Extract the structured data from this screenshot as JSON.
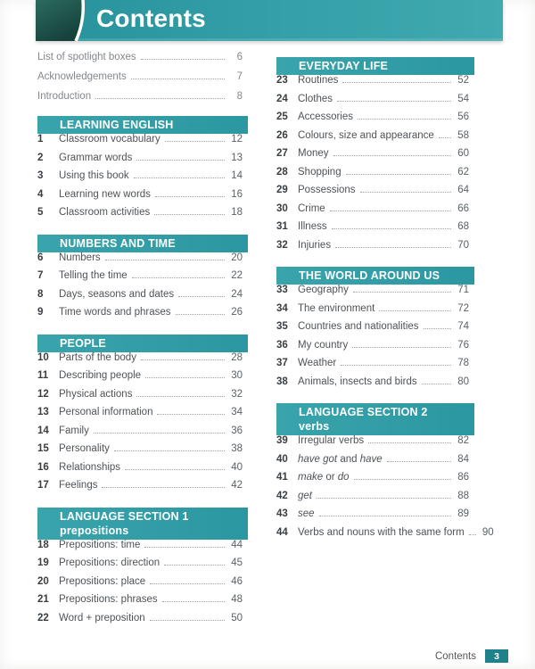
{
  "header": {
    "title": "Contents"
  },
  "footer": {
    "label": "Contents",
    "page_number": "3"
  },
  "colors": {
    "accent_teal": "#2f9da6",
    "header_teal_left": "#27929b",
    "header_teal_right": "#41a9b0",
    "dark_green_top": "#2c6b5e",
    "dark_green_bottom": "#15413a",
    "badge_teal": "#1f828b"
  },
  "front_matter": [
    {
      "title": "List of spotlight boxes",
      "page": "6"
    },
    {
      "title": "Acknowledgements",
      "page": "7"
    },
    {
      "title": "Introduction",
      "page": "8"
    }
  ],
  "columns": {
    "left": [
      {
        "heading": "LEARNING ENGLISH",
        "items": [
          {
            "num": "1",
            "title": "Classroom vocabulary",
            "page": "12"
          },
          {
            "num": "2",
            "title": "Grammar words",
            "page": "13"
          },
          {
            "num": "3",
            "title": "Using this book",
            "page": "14"
          },
          {
            "num": "4",
            "title": "Learning new words",
            "page": "16"
          },
          {
            "num": "5",
            "title": "Classroom activities",
            "page": "18"
          }
        ]
      },
      {
        "heading": "NUMBERS AND TIME",
        "items": [
          {
            "num": "6",
            "title": "Numbers",
            "page": "20"
          },
          {
            "num": "7",
            "title": "Telling the time",
            "page": "22"
          },
          {
            "num": "8",
            "title": "Days, seasons and dates",
            "page": "24"
          },
          {
            "num": "9",
            "title": "Time words and phrases",
            "page": "26"
          }
        ]
      },
      {
        "heading": "PEOPLE",
        "items": [
          {
            "num": "10",
            "title": "Parts of the body",
            "page": "28"
          },
          {
            "num": "11",
            "title": "Describing people",
            "page": "30"
          },
          {
            "num": "12",
            "title": "Physical actions",
            "page": "32"
          },
          {
            "num": "13",
            "title": "Personal information",
            "page": "34"
          },
          {
            "num": "14",
            "title": "Family",
            "page": "36"
          },
          {
            "num": "15",
            "title": "Personality",
            "page": "38"
          },
          {
            "num": "16",
            "title": "Relationships",
            "page": "40"
          },
          {
            "num": "17",
            "title": "Feelings",
            "page": "42"
          }
        ]
      },
      {
        "heading": "LANGUAGE SECTION 1",
        "subheading": "prepositions",
        "items": [
          {
            "num": "18",
            "title": "Prepositions: time",
            "page": "44"
          },
          {
            "num": "19",
            "title": "Prepositions: direction",
            "page": "45"
          },
          {
            "num": "20",
            "title": "Prepositions: place",
            "page": "46"
          },
          {
            "num": "21",
            "title": "Prepositions: phrases",
            "page": "48"
          },
          {
            "num": "22",
            "title": "Word + preposition",
            "page": "50"
          }
        ]
      }
    ],
    "right": [
      {
        "heading": "EVERYDAY LIFE",
        "items": [
          {
            "num": "23",
            "title": "Routines",
            "page": "52"
          },
          {
            "num": "24",
            "title": "Clothes",
            "page": "54"
          },
          {
            "num": "25",
            "title": "Accessories",
            "page": "56"
          },
          {
            "num": "26",
            "title": "Colours, size and appearance",
            "page": "58"
          },
          {
            "num": "27",
            "title": "Money",
            "page": "60"
          },
          {
            "num": "28",
            "title": "Shopping",
            "page": "62"
          },
          {
            "num": "29",
            "title": "Possessions",
            "page": "64"
          },
          {
            "num": "30",
            "title": "Crime",
            "page": "66"
          },
          {
            "num": "31",
            "title": "Illness",
            "page": "68"
          },
          {
            "num": "32",
            "title": "Injuries",
            "page": "70"
          }
        ]
      },
      {
        "heading": "THE WORLD AROUND US",
        "items": [
          {
            "num": "33",
            "title": "Geography",
            "page": "71"
          },
          {
            "num": "34",
            "title": "The environment",
            "page": "72"
          },
          {
            "num": "35",
            "title": "Countries and nationalities",
            "page": "74"
          },
          {
            "num": "36",
            "title": "My country",
            "page": "76"
          },
          {
            "num": "37",
            "title": "Weather",
            "page": "78"
          },
          {
            "num": "38",
            "title": "Animals, insects and birds",
            "page": "80"
          }
        ]
      },
      {
        "heading": "LANGUAGE SECTION 2",
        "subheading": "verbs",
        "items": [
          {
            "num": "39",
            "title": "Irregular verbs",
            "page": "82"
          },
          {
            "num": "40",
            "title": [
              {
                "text": "have got",
                "italic": true
              },
              {
                "text": " and ",
                "italic": false
              },
              {
                "text": "have",
                "italic": true
              }
            ],
            "page": "84"
          },
          {
            "num": "41",
            "title": [
              {
                "text": "make",
                "italic": true
              },
              {
                "text": " or ",
                "italic": false
              },
              {
                "text": "do",
                "italic": true
              }
            ],
            "page": "86"
          },
          {
            "num": "42",
            "title": [
              {
                "text": "get",
                "italic": true
              }
            ],
            "page": "88"
          },
          {
            "num": "43",
            "title": [
              {
                "text": "see",
                "italic": true
              }
            ],
            "page": "89"
          },
          {
            "num": "44",
            "title": "Verbs and nouns with the same form",
            "page": "90"
          }
        ]
      }
    ]
  }
}
